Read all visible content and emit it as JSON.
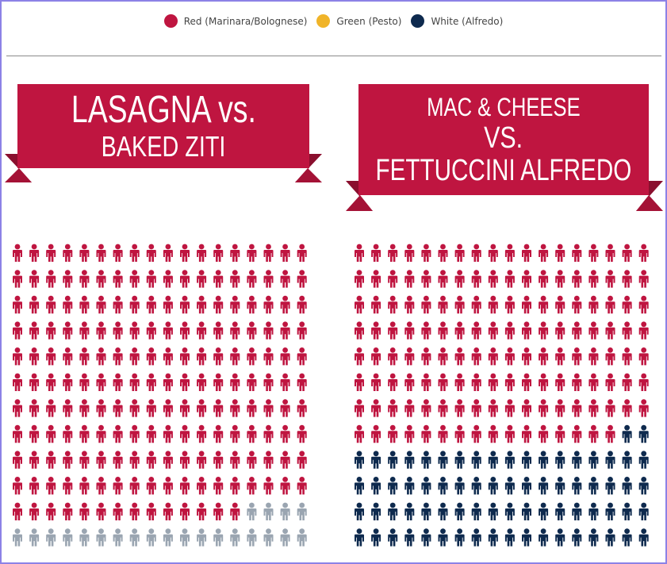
{
  "legend": {
    "items": [
      {
        "label": "Red (Marinara/Bolognese)",
        "color": "#bf1540"
      },
      {
        "label": "Green (Pesto)",
        "color": "#f0b429"
      },
      {
        "label": "White (Alfredo)",
        "color": "#0e2a4e"
      }
    ]
  },
  "colors": {
    "banner": "#bf1540",
    "ribbon_fold": "#8a0f2e",
    "other": "#9aa5b1"
  },
  "chart_data": [
    {
      "type": "pictogram",
      "title_lines": [
        "LASAGNA vs.",
        "BAKED ZITI"
      ],
      "columns": 18,
      "rows": 12,
      "segments": [
        {
          "category": "Red (Marinara/Bolognese)",
          "count": 194,
          "color": "#bf1540"
        },
        {
          "category": "",
          "count": 22,
          "color": "#9aa5b1"
        }
      ]
    },
    {
      "type": "pictogram",
      "title_lines": [
        "MAC & CHEESE",
        "VS.",
        "FETTUCCINI ALFREDO"
      ],
      "columns": 18,
      "rows": 12,
      "segments": [
        {
          "category": "Red (Marinara/Bolognese)",
          "count": 142,
          "color": "#bf1540"
        },
        {
          "category": "White (Alfredo)",
          "count": 74,
          "color": "#0e2a4e"
        }
      ]
    }
  ]
}
